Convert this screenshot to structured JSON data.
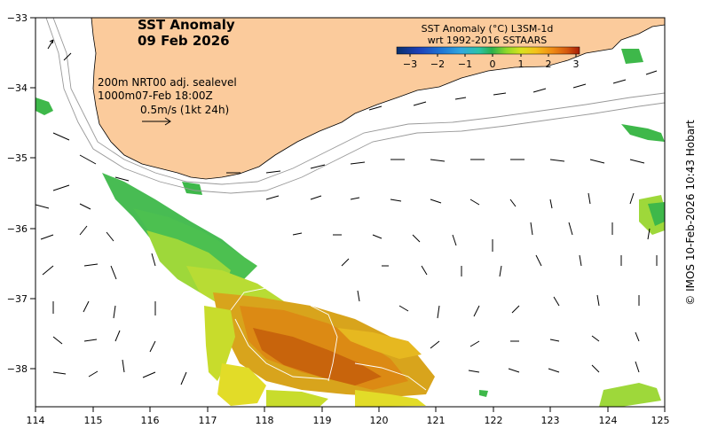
{
  "map": {
    "title_line1": "SST Anomaly",
    "title_line2": "09 Feb 2026",
    "info": {
      "line1": "200m   NRT00 adj. sealevel",
      "line2": "1000m07-Feb 18:00Z",
      "line3": "0.5m/s (1kt 24h)"
    },
    "legend": {
      "title1": "SST Anomaly (°C) L3SM-1d",
      "title2": "wrt 1992-2016 SSTAARS",
      "ticks": [
        "−3",
        "−2",
        "−1",
        "0",
        "1",
        "2",
        "3"
      ],
      "colors": [
        "#08306b",
        "#1c3fb8",
        "#1f78d6",
        "#30a7e0",
        "#2cc3a8",
        "#2cb04c",
        "#8fd82a",
        "#d8e21e",
        "#f4c21a",
        "#f08c14",
        "#d65a0e",
        "#a81e08"
      ]
    },
    "credit": "© IMOS 10-Feb-2026 10:43 Hobart",
    "lon_ticks": [
      "114",
      "115",
      "116",
      "117",
      "118",
      "119",
      "120",
      "121",
      "122",
      "123",
      "124",
      "125"
    ],
    "lat_ticks": [
      "−33",
      "−34",
      "−35",
      "−36",
      "−37",
      "−38"
    ],
    "colors": {
      "land": "#fbcb9c",
      "green": "#3eb84a",
      "lightgreen": "#9ed83a",
      "yellow": "#e2dc28",
      "orange": "#dc8a14",
      "darkorange": "#c8640c"
    }
  }
}
